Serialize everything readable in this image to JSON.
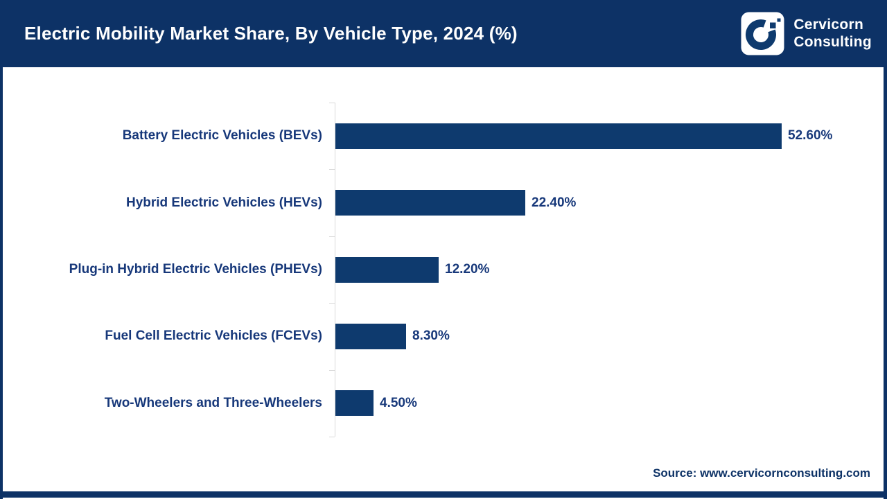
{
  "header": {
    "title": "Electric Mobility Market Share, By Vehicle Type, 2024 (%)",
    "logo": {
      "line1": "Cervicorn",
      "line2": "Consulting"
    }
  },
  "chart_data": {
    "type": "bar",
    "orientation": "horizontal",
    "title": "Electric Mobility Market Share, By Vehicle Type, 2024 (%)",
    "categories": [
      "Battery Electric Vehicles (BEVs)",
      "Hybrid Electric Vehicles (HEVs)",
      "Plug-in Hybrid Electric Vehicles (PHEVs)",
      "Fuel Cell Electric Vehicles (FCEVs)",
      "Two-Wheelers and Three-Wheelers"
    ],
    "values": [
      52.6,
      22.4,
      12.2,
      8.3,
      4.5
    ],
    "value_labels": [
      "52.60%",
      "22.40%",
      "12.20%",
      "8.30%",
      "4.50%"
    ],
    "xlim": [
      0,
      55
    ],
    "grid": false,
    "legend": false,
    "bar_color": "#0e3a6e",
    "text_color": "#17387a",
    "axis_color": "#d9d9d9"
  },
  "footer": {
    "source": "Source: www.cervicornconsulting.com"
  },
  "colors": {
    "header_bg": "#0d3266",
    "bar": "#0e3a6e",
    "label_text": "#17387a",
    "axis": "#d9d9d9"
  }
}
